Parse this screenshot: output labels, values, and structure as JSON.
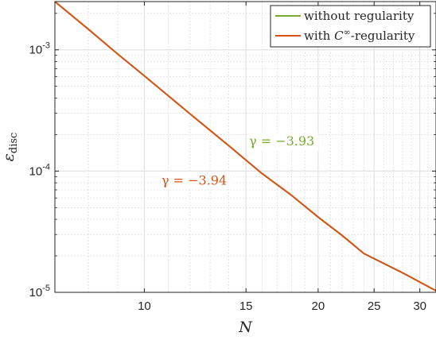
{
  "chart_data": {
    "type": "line",
    "xscale": "log",
    "yscale": "log",
    "xlim": [
      7,
      32
    ],
    "ylim": [
      1e-05,
      0.0025
    ],
    "xticks": [
      10,
      15,
      20,
      25,
      30
    ],
    "xtick_labels": [
      "10",
      "15",
      "20",
      "25",
      "30"
    ],
    "yticks": [
      1e-05,
      0.0001,
      0.001
    ],
    "ytick_labels": [
      {
        "base": "10",
        "exp": "-5"
      },
      {
        "base": "10",
        "exp": "-4"
      },
      {
        "base": "10",
        "exp": "-3"
      }
    ],
    "xlabel": "N",
    "ylabel": {
      "base": "ε",
      "sub": "disc"
    },
    "grid": true,
    "minor_grid": true,
    "legend_position": "top-right",
    "series": [
      {
        "name": "without regularity",
        "color": "#77ac30",
        "x": [
          7,
          8,
          9,
          10,
          12,
          14,
          16,
          18,
          20,
          22,
          24,
          28,
          32
        ],
        "y": [
          0.0025,
          0.00148,
          0.00092,
          0.00061,
          0.000296,
          0.000162,
          9.52e-05,
          6.29e-05,
          4.17e-05,
          2.95e-05,
          2.09e-05,
          1.45e-05,
          1.03e-05
        ]
      },
      {
        "name_parts": {
          "prefix": "with ",
          "var": "C",
          "sup": "∞",
          "suffix": "-regularity"
        },
        "color": "#d95319",
        "x": [
          7,
          8,
          9,
          10,
          12,
          14,
          16,
          18,
          20,
          22,
          24,
          28,
          32
        ],
        "y": [
          0.0025,
          0.00148,
          0.00092,
          0.00061,
          0.000296,
          0.000162,
          9.52e-05,
          6.29e-05,
          4.17e-05,
          2.95e-05,
          2.09e-05,
          1.45e-05,
          1.03e-05
        ]
      }
    ],
    "annotations": [
      {
        "text": "γ = −3.93",
        "color": "#77ac30",
        "x": 17.3,
        "y": 0.000165
      },
      {
        "text": "γ = −3.94",
        "color": "#d95319",
        "x": 12.2,
        "y": 7.85e-05
      }
    ]
  }
}
